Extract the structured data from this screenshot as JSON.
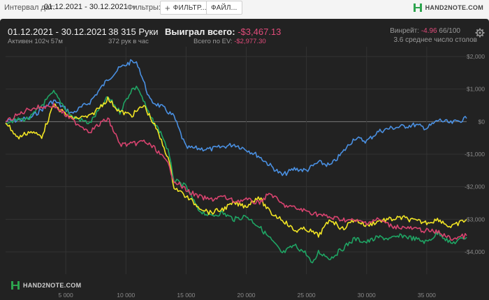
{
  "toolbar": {
    "interval_label": "Интервал дат:",
    "date_range": "01.12.2021 - 30.12.2021",
    "filters_label": "Фильтры:",
    "filter_button": "ФИЛЬТР...",
    "file_button": "ФАЙЛ...",
    "brand": "HAND2NOTE.COM"
  },
  "summary": {
    "date_range": "01.12.2021 - 30.12.2021",
    "active": "Активен 102ч 57м",
    "hands": "38 315 Руки",
    "hands_per_hour": "372 рук в час",
    "won_label": "Выиграл всего:",
    "won_value": "-$3,467.13",
    "ev_label": "Всего по EV:",
    "ev_value": "-$2,977.30",
    "winrate_label": "Винрейт:",
    "winrate_value": "-4.96",
    "winrate_rest": "66/100",
    "tables": "3.6 среднее число столов"
  },
  "watermark": "HAND2NOTE.COM",
  "colors": {
    "blue": "#4a90e2",
    "green": "#1fa564",
    "yellow": "#f2e524",
    "pink": "#d8436f",
    "negative": "#e04b7a"
  },
  "chart_data": {
    "type": "line",
    "xlabel": "",
    "ylabel": "",
    "xlim": [
      0,
      38315
    ],
    "ylim": [
      -4600,
      2300
    ],
    "x_ticks": [
      5000,
      10000,
      15000,
      20000,
      25000,
      30000,
      35000
    ],
    "x_tick_labels": [
      "5 000",
      "10 000",
      "15 000",
      "20 000",
      "25 000",
      "30 000",
      "35 000"
    ],
    "y_ticks": [
      2000,
      1000,
      0,
      -1000,
      -2000,
      -3000,
      -4000
    ],
    "y_tick_labels": [
      "$2,000",
      "$1,000",
      "$0",
      "-$1,000",
      "-$2,000",
      "-$3,000",
      "-$4,000"
    ],
    "series": [
      {
        "color": "blue",
        "x": [
          0,
          2000,
          4000,
          5500,
          7000,
          8500,
          9500,
          10500,
          11000,
          12000,
          13000,
          14000,
          15000,
          17000,
          19000,
          20000,
          21000,
          22000,
          23000,
          24000,
          25000,
          26000,
          27000,
          28000,
          29000,
          30000,
          31000,
          32000,
          33000,
          34000,
          35000,
          36000,
          37000,
          38315
        ],
        "y": [
          0,
          100,
          650,
          250,
          600,
          1300,
          1650,
          1850,
          1750,
          650,
          450,
          150,
          -800,
          -850,
          -700,
          -850,
          -1050,
          -1350,
          -1650,
          -1450,
          -1500,
          -1250,
          -1350,
          -950,
          -500,
          -600,
          -300,
          -200,
          -150,
          -100,
          -200,
          50,
          -50,
          100
        ]
      },
      {
        "color": "green",
        "x": [
          0,
          2000,
          4000,
          5500,
          7000,
          8500,
          9500,
          10500,
          11000,
          12000,
          13000,
          13500,
          14000,
          15000,
          16000,
          17000,
          18000,
          19000,
          20000,
          21000,
          22000,
          23000,
          24000,
          25000,
          25500,
          26000,
          27000,
          28000,
          29000,
          30000,
          31000,
          32000,
          33000,
          34000,
          35000,
          36000,
          37000,
          38315
        ],
        "y": [
          0,
          100,
          900,
          150,
          -50,
          750,
          300,
          1000,
          1050,
          150,
          -400,
          -900,
          -1800,
          -2000,
          -2700,
          -2900,
          -2800,
          -3000,
          -2900,
          -3200,
          -3600,
          -4050,
          -3800,
          -4050,
          -4400,
          -4000,
          -4200,
          -3900,
          -3600,
          -3700,
          -3550,
          -3600,
          -3500,
          -3600,
          -3700,
          -3400,
          -3750,
          -3550
        ]
      },
      {
        "color": "yellow",
        "x": [
          0,
          1000,
          2000,
          3000,
          4000,
          5500,
          7000,
          8500,
          9500,
          10500,
          11500,
          12500,
          13500,
          14000,
          15000,
          16000,
          17000,
          18000,
          19000,
          20000,
          21000,
          22000,
          23000,
          24000,
          25000,
          26000,
          27000,
          28000,
          29000,
          30000,
          31000,
          32000,
          33000,
          34000,
          35000,
          36000,
          37000,
          38315
        ],
        "y": [
          0,
          -500,
          -300,
          -450,
          500,
          100,
          150,
          700,
          300,
          200,
          500,
          -200,
          -1100,
          -2000,
          -2300,
          -2600,
          -2800,
          -2700,
          -2500,
          -2600,
          -2300,
          -2800,
          -3000,
          -3350,
          -3300,
          -3500,
          -3000,
          -3300,
          -3000,
          -3200,
          -3050,
          -3000,
          -2950,
          -3050,
          -3100,
          -3000,
          -3250,
          -3000
        ]
      },
      {
        "color": "pink",
        "x": [
          0,
          2000,
          4000,
          5500,
          7000,
          8500,
          9500,
          10500,
          11500,
          12500,
          13500,
          14000,
          15000,
          16000,
          17000,
          18000,
          19000,
          20000,
          21000,
          22000,
          23000,
          24000,
          25000,
          26000,
          27000,
          28000,
          29000,
          30000,
          31000,
          32000,
          33000,
          34000,
          35000,
          36000,
          37000,
          38315
        ],
        "y": [
          0,
          400,
          500,
          50,
          -300,
          100,
          -700,
          -700,
          -600,
          -850,
          -1300,
          -1800,
          -2100,
          -2300,
          -2400,
          -2300,
          -2450,
          -2400,
          -2500,
          -2200,
          -2550,
          -2650,
          -2750,
          -2850,
          -2950,
          -3000,
          -3050,
          -3100,
          -3000,
          -3200,
          -3250,
          -3300,
          -3350,
          -3400,
          -3600,
          -3500
        ]
      }
    ]
  }
}
